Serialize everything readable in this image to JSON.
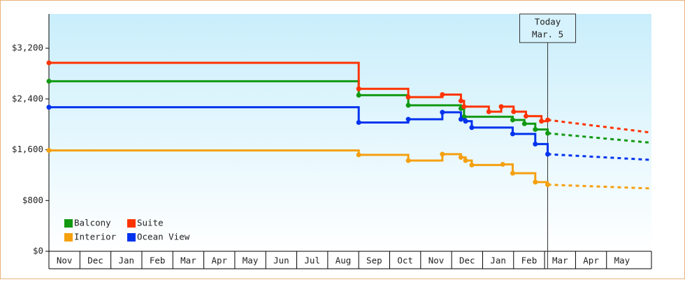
{
  "chart_data": {
    "type": "step-line",
    "xlim": [
      0,
      19.45
    ],
    "xticks": [
      {
        "value": 0,
        "label": "Nov"
      },
      {
        "value": 1,
        "label": "Dec"
      },
      {
        "value": 2,
        "label": "Jan"
      },
      {
        "value": 3,
        "label": "Feb"
      },
      {
        "value": 4,
        "label": "Mar"
      },
      {
        "value": 5,
        "label": "Apr"
      },
      {
        "value": 6,
        "label": "May"
      },
      {
        "value": 7,
        "label": "Jun"
      },
      {
        "value": 8,
        "label": "Jul"
      },
      {
        "value": 9,
        "label": "Aug"
      },
      {
        "value": 10,
        "label": "Sep"
      },
      {
        "value": 11,
        "label": "Oct"
      },
      {
        "value": 12,
        "label": "Nov"
      },
      {
        "value": 13,
        "label": "Dec"
      },
      {
        "value": 14,
        "label": "Jan"
      },
      {
        "value": 15,
        "label": "Feb"
      },
      {
        "value": 16,
        "label": "Mar"
      },
      {
        "value": 17,
        "label": "Apr"
      },
      {
        "value": 18,
        "label": "May"
      }
    ],
    "ylim": [
      0,
      3740
    ],
    "yticks": [
      {
        "value": 0,
        "label": "$0"
      },
      {
        "value": 800,
        "label": "$800"
      },
      {
        "value": 1600,
        "label": "$1,600"
      },
      {
        "value": 2400,
        "label": "$2,400"
      },
      {
        "value": 3200,
        "label": "$3,200"
      }
    ],
    "today": {
      "x": 16.1,
      "label": [
        "Today",
        "Mar. 5"
      ]
    },
    "forecast_x": [
      16.1,
      19.45
    ],
    "legend": "bottom-left",
    "series": [
      {
        "name": "Balcony",
        "color": "#119911",
        "x": [
          0,
          10,
          11.6,
          13.3,
          13.4,
          14.97,
          15.35,
          15.7,
          16.1
        ],
        "values": [
          2680,
          2460,
          2300,
          2250,
          2120,
          2070,
          2010,
          1920,
          1860
        ],
        "forecast_values": [
          1860,
          1710
        ]
      },
      {
        "name": "Suite",
        "color": "#ff3300",
        "x": [
          0,
          10,
          11.6,
          12.7,
          13.3,
          13.4,
          14.2,
          14.6,
          15.0,
          15.4,
          15.9,
          16.1
        ],
        "values": [
          2970,
          2560,
          2430,
          2470,
          2370,
          2280,
          2200,
          2280,
          2200,
          2130,
          2050,
          2070
        ],
        "forecast_values": [
          2070,
          1870
        ]
      },
      {
        "name": "Interior",
        "color": "#f5a00f",
        "x": [
          0,
          10,
          11.6,
          12.7,
          13.3,
          13.45,
          13.65,
          14.65,
          14.97,
          15.7,
          16.1
        ],
        "values": [
          1590,
          1520,
          1430,
          1530,
          1480,
          1430,
          1360,
          1370,
          1230,
          1090,
          1050
        ],
        "forecast_values": [
          1050,
          990
        ]
      },
      {
        "name": "Ocean View",
        "color": "#0033ee",
        "x": [
          0,
          10,
          11.6,
          12.7,
          13.3,
          13.45,
          13.65,
          14.97,
          15.7,
          16.1
        ],
        "values": [
          2270,
          2030,
          2080,
          2190,
          2080,
          2050,
          1950,
          1850,
          1690,
          1530
        ],
        "forecast_values": [
          1530,
          1440
        ]
      }
    ]
  }
}
